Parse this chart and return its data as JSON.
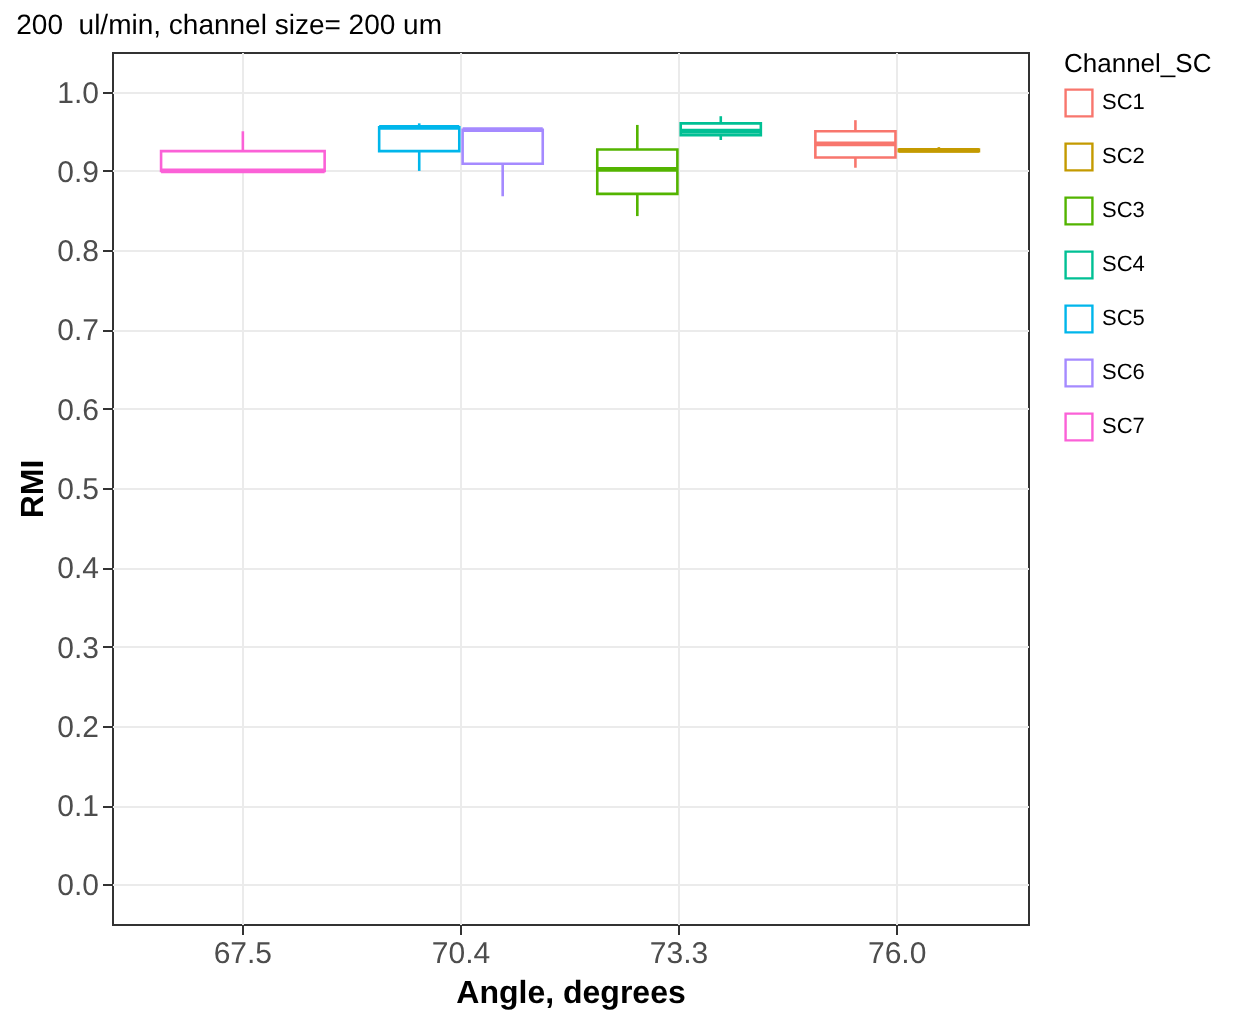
{
  "chart_data": {
    "type": "box",
    "title": "200  ul/min, channel size= 200 um",
    "xlabel": "Angle, degrees",
    "ylabel": "RMI",
    "legend_title": "Channel_SC",
    "categories": [
      "67.5",
      "70.4",
      "73.3",
      "76.0"
    ],
    "series": [
      {
        "name": "SC1",
        "color": "#f8766d",
        "boxes": [
          null,
          null,
          null,
          {
            "low": 0.904,
            "q1": 0.917,
            "median": 0.934,
            "q3": 0.95,
            "high": 0.964
          }
        ]
      },
      {
        "name": "SC2",
        "color": "#c49a00",
        "boxes": [
          null,
          null,
          null,
          {
            "low": 0.925,
            "q1": 0.925,
            "median": 0.926,
            "q3": 0.927,
            "high": 0.93
          }
        ]
      },
      {
        "name": "SC3",
        "color": "#53b400",
        "boxes": [
          null,
          null,
          {
            "low": 0.843,
            "q1": 0.871,
            "median": 0.902,
            "q3": 0.927,
            "high": 0.958
          },
          null
        ]
      },
      {
        "name": "SC4",
        "color": "#00c094",
        "boxes": [
          null,
          null,
          {
            "low": 0.939,
            "q1": 0.945,
            "median": 0.95,
            "q3": 0.96,
            "high": 0.969
          },
          null
        ]
      },
      {
        "name": "SC5",
        "color": "#00b6eb",
        "boxes": [
          null,
          {
            "low": 0.9,
            "q1": 0.925,
            "median": 0.955,
            "q3": 0.955,
            "high": 0.96
          },
          null,
          null
        ]
      },
      {
        "name": "SC6",
        "color": "#a58aff",
        "boxes": [
          null,
          {
            "low": 0.868,
            "q1": 0.909,
            "median": 0.952,
            "q3": 0.952,
            "high": 0.954
          },
          null,
          null
        ]
      },
      {
        "name": "SC7",
        "color": "#fb61d7",
        "boxes": [
          {
            "low": 0.9,
            "q1": 0.9,
            "median": 0.9,
            "q3": 0.925,
            "high": 0.95
          },
          null,
          null,
          null
        ]
      }
    ],
    "ylim": [
      -0.05,
      1.05
    ],
    "yticks": [
      {
        "value": 0,
        "label": "0.0"
      },
      {
        "value": 0.1,
        "label": "0.1"
      },
      {
        "value": 0.2,
        "label": "0.2"
      },
      {
        "value": 0.3,
        "label": "0.3"
      },
      {
        "value": 0.4,
        "label": "0.4"
      },
      {
        "value": 0.5,
        "label": "0.5"
      },
      {
        "value": 0.6,
        "label": "0.6"
      },
      {
        "value": 0.7,
        "label": "0.7"
      },
      {
        "value": 0.8,
        "label": "0.8"
      },
      {
        "value": 0.9,
        "label": "0.9"
      },
      {
        "value": 1,
        "label": "1.0"
      }
    ],
    "grid": true,
    "legend": "right"
  }
}
